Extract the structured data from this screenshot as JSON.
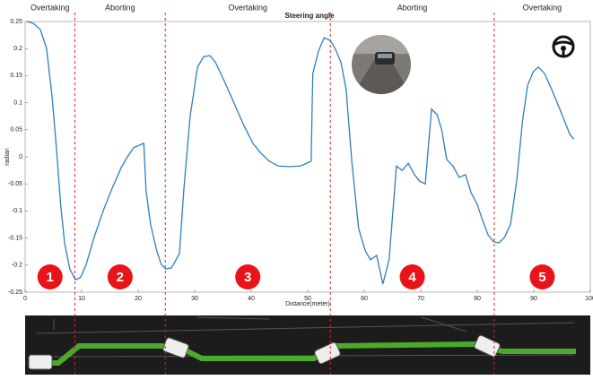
{
  "chart_data": {
    "type": "line",
    "title": "Steering angle",
    "xlabel": "Distance(meter)",
    "ylabel": "radian",
    "x": [
      0.3,
      1.4,
      2.7,
      3.8,
      4.8,
      5.6,
      6.3,
      7.0,
      7.9,
      8.9,
      9.8,
      10.8,
      12.2,
      13.8,
      15.4,
      17,
      18.1,
      19.2,
      21,
      21.4,
      22.2,
      23.3,
      24.1,
      24.9,
      25.9,
      26.5,
      27.3,
      28.1,
      29.2,
      30.5,
      31.6,
      32.7,
      33.7,
      35.2,
      37.1,
      38.7,
      40.3,
      41.6,
      43.2,
      44.8,
      46.7,
      48.7,
      49.8,
      50.6,
      50.9,
      51.9,
      52.9,
      54,
      54.9,
      55.9,
      56.8,
      57.8,
      59.0,
      60.2,
      61.1,
      62.2,
      63.3,
      64.4,
      65.7,
      66.7,
      67.8,
      68.9,
      69.8,
      70.8,
      71.9,
      72.9,
      73.7,
      74.6,
      75.7,
      76.8,
      77.9,
      78.9,
      80,
      80.9,
      81.9,
      82.9,
      83.8,
      84.8,
      85.9,
      87,
      88,
      88.9,
      89.9,
      90.8,
      91.9,
      93.2,
      94.8,
      96.4,
      97.1
    ],
    "values": [
      0.25,
      0.247,
      0.235,
      0.2,
      0.108,
      0.008,
      -0.09,
      -0.16,
      -0.207,
      -0.227,
      -0.223,
      -0.199,
      -0.149,
      -0.1,
      -0.058,
      -0.02,
      0,
      0.017,
      0.025,
      -0.063,
      -0.125,
      -0.174,
      -0.199,
      -0.207,
      -0.205,
      -0.194,
      -0.179,
      -0.058,
      0.075,
      0.166,
      0.185,
      0.187,
      0.174,
      0.141,
      0.096,
      0.058,
      0.025,
      0.008,
      -0.008,
      -0.017,
      -0.018,
      -0.017,
      -0.012,
      -0.008,
      0.154,
      0.195,
      0.22,
      0.215,
      0.199,
      0.174,
      0.124,
      -0.008,
      -0.132,
      -0.174,
      -0.19,
      -0.182,
      -0.235,
      -0.19,
      -0.017,
      -0.025,
      -0.012,
      -0.033,
      -0.045,
      -0.05,
      0.088,
      0.078,
      0.05,
      -0.005,
      -0.017,
      -0.038,
      -0.033,
      -0.066,
      -0.088,
      -0.116,
      -0.144,
      -0.157,
      -0.159,
      -0.149,
      -0.124,
      -0.042,
      0.066,
      0.132,
      0.157,
      0.166,
      0.154,
      0.124,
      0.083,
      0.041,
      0.033
    ],
    "color": "#2e7fbf",
    "xlim": [
      0,
      100
    ],
    "xticks": [
      0,
      10,
      20,
      30,
      40,
      50,
      60,
      70,
      80,
      90,
      100
    ],
    "ylim": [
      -0.25,
      0.25
    ],
    "yticks": [
      -0.25,
      -0.2,
      -0.15,
      -0.1,
      -0.05,
      0,
      0.05,
      0.1,
      0.15,
      0.2,
      0.25
    ],
    "boundaries": [
      8.8,
      24.8,
      54,
      83
    ],
    "boundary_color": "#e02020",
    "phases": [
      "Overtaking",
      "Aborting",
      "Overtaking",
      "Aborting",
      "Overtaking"
    ],
    "markers": [
      "1",
      "2",
      "3",
      "4",
      "5"
    ],
    "marker_color": "#e8141a"
  }
}
